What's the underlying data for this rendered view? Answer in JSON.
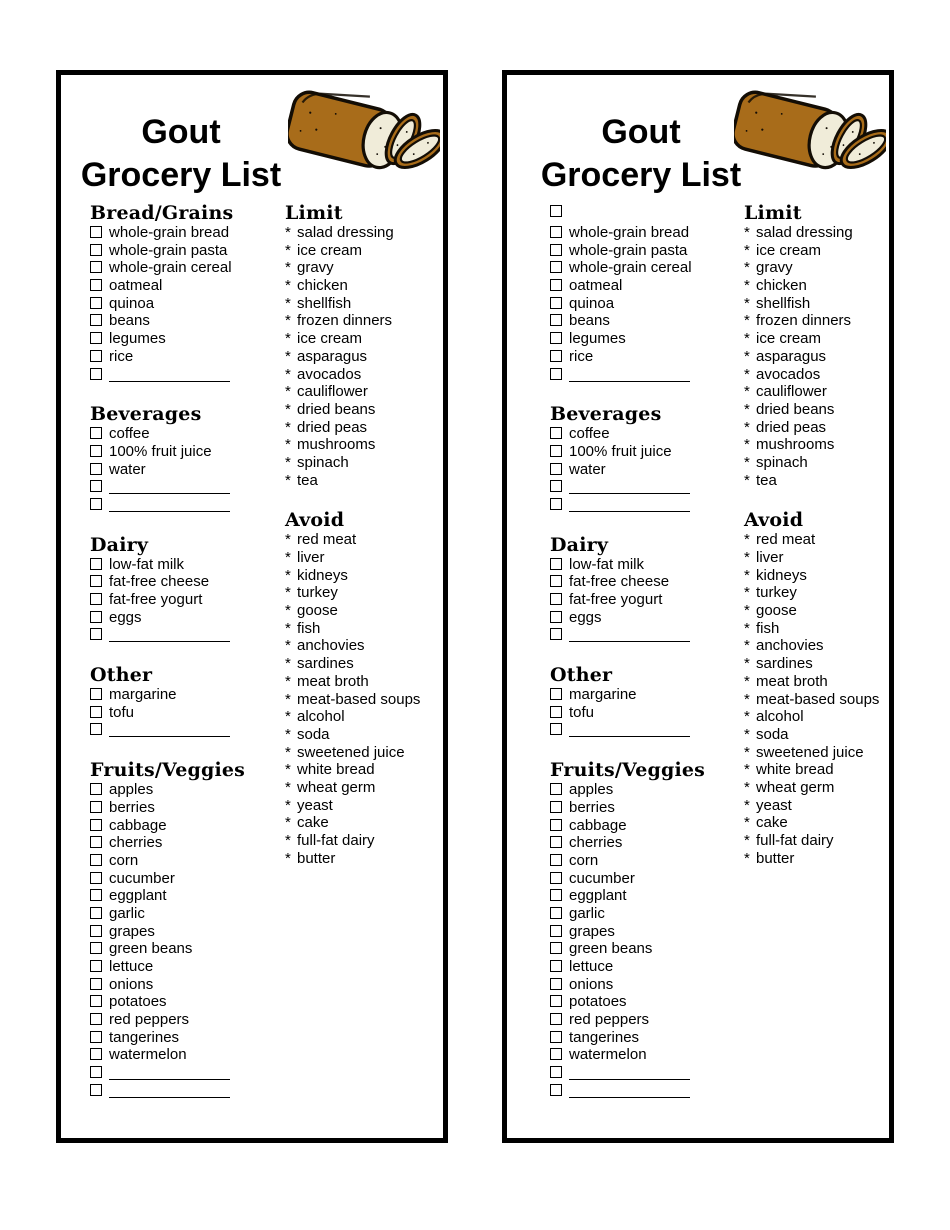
{
  "colors": {
    "text": "#000000",
    "panel_border": "#000000",
    "background": "#ffffff",
    "bread_crust": "#a86c1a",
    "bread_inner": "#f0ecd9",
    "bread_outline": "#130d05"
  },
  "markers": {
    "note_marker": "*"
  },
  "icons": {
    "bread_illustration": "sliced-bread-loaf"
  },
  "panels": [
    {
      "title_line1": "Gout",
      "title_line2": "Grocery List",
      "checklist_sections": [
        {
          "heading": "Bread/Grains",
          "items": [
            "whole-grain bread",
            "whole-grain pasta",
            "whole-grain cereal",
            "oatmeal",
            "quinoa",
            "beans",
            "legumes",
            "rice"
          ],
          "blank_rows": 1
        },
        {
          "heading": "Beverages",
          "items": [
            "coffee",
            "100% fruit juice",
            "water"
          ],
          "blank_rows": 2
        },
        {
          "heading": "Dairy",
          "items": [
            "low-fat milk",
            "fat-free cheese",
            "fat-free yogurt",
            "eggs"
          ],
          "blank_rows": 1
        },
        {
          "heading": "Other",
          "items": [
            "margarine",
            "tofu"
          ],
          "blank_rows": 1
        },
        {
          "heading": "Fruits/Veggies",
          "items": [
            "apples",
            "berries",
            "cabbage",
            "cherries",
            "corn",
            "cucumber",
            "eggplant",
            "garlic",
            "grapes",
            "green beans",
            "lettuce",
            "onions",
            "potatoes",
            "red peppers",
            "tangerines",
            "watermelon"
          ],
          "blank_rows": 2
        }
      ],
      "note_sections": [
        {
          "heading": "Limit",
          "items": [
            "salad dressing",
            "ice cream",
            "gravy",
            "chicken",
            "shellfish",
            "frozen dinners",
            "ice cream",
            "asparagus",
            "avocados",
            "cauliflower",
            "dried beans",
            "dried peas",
            "mushrooms",
            "spinach",
            "tea"
          ]
        },
        {
          "heading": "Avoid",
          "items": [
            "red meat",
            "liver",
            "kidneys",
            "turkey",
            "goose",
            "fish",
            "anchovies",
            "sardines",
            "meat broth",
            "meat-based soups",
            "alcohol",
            "soda",
            "sweetened juice",
            "white bread",
            "wheat germ",
            "yeast",
            "cake",
            "full-fat dairy",
            "butter"
          ]
        }
      ]
    },
    {
      "title_line1": "Gout",
      "title_line2": "Grocery List",
      "checklist_sections": [
        {
          "heading": null,
          "heading_checkbox": true,
          "items": [
            "whole-grain bread",
            "whole-grain pasta",
            "whole-grain cereal",
            "oatmeal",
            "quinoa",
            "beans",
            "legumes",
            "rice"
          ],
          "blank_rows": 1
        },
        {
          "heading": "Beverages",
          "items": [
            "coffee",
            "100% fruit juice",
            "water"
          ],
          "blank_rows": 2
        },
        {
          "heading": "Dairy",
          "items": [
            "low-fat milk",
            "fat-free cheese",
            "fat-free yogurt",
            "eggs"
          ],
          "blank_rows": 1
        },
        {
          "heading": "Other",
          "items": [
            "margarine",
            "tofu"
          ],
          "blank_rows": 1
        },
        {
          "heading": "Fruits/Veggies",
          "items": [
            "apples",
            "berries",
            "cabbage",
            "cherries",
            "corn",
            "cucumber",
            "eggplant",
            "garlic",
            "grapes",
            "green beans",
            "lettuce",
            "onions",
            "potatoes",
            "red peppers",
            "tangerines",
            "watermelon"
          ],
          "blank_rows": 2
        }
      ],
      "note_sections": [
        {
          "heading": "Limit",
          "items": [
            "salad dressing",
            "ice cream",
            "gravy",
            "chicken",
            "shellfish",
            "frozen dinners",
            "ice cream",
            "asparagus",
            "avocados",
            "cauliflower",
            "dried beans",
            "dried peas",
            "mushrooms",
            "spinach",
            "tea"
          ]
        },
        {
          "heading": "Avoid",
          "items": [
            "red meat",
            "liver",
            "kidneys",
            "turkey",
            "goose",
            "fish",
            "anchovies",
            "sardines",
            "meat broth",
            "meat-based soups",
            "alcohol",
            "soda",
            "sweetened juice",
            "white bread",
            "wheat germ",
            "yeast",
            "cake",
            "full-fat dairy",
            "butter"
          ]
        }
      ]
    }
  ]
}
